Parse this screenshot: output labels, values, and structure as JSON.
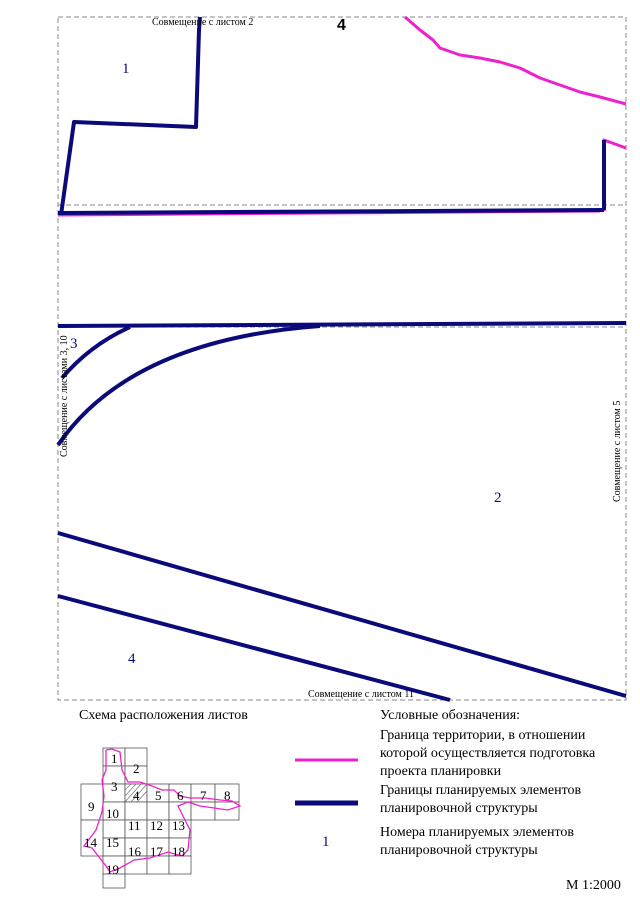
{
  "map": {
    "joins": {
      "top": "Совмещение с листом 2",
      "left": "Совмещение с листами 3, 10",
      "right": "Совмещение с листом 5",
      "bottom": "Совмещение с листом 11"
    },
    "elements": [
      {
        "name": "element-1",
        "number": "1"
      },
      {
        "name": "element-2",
        "number": "2"
      },
      {
        "name": "element-3",
        "number": "3"
      },
      {
        "name": "element-4-top",
        "number": "4"
      },
      {
        "name": "element-4-bottom",
        "number": "4"
      }
    ],
    "colors": {
      "territory_boundary": "#ee22cc",
      "element_boundary": "#0a0a7a",
      "frame": "#888888"
    }
  },
  "sheet_scheme": {
    "title": "Схема расположения листов",
    "sheets": [
      "1",
      "2",
      "3",
      "4",
      "5",
      "6",
      "7",
      "8",
      "9",
      "10",
      "11",
      "12",
      "13",
      "14",
      "15",
      "16",
      "17",
      "18",
      "19"
    ],
    "current_sheet": "4"
  },
  "legend": {
    "title": "Условные обозначения:",
    "items": [
      {
        "symbol": "magenta-line",
        "text": "Граница территории, в отношении которой осуществляется подготовка проекта планировки"
      },
      {
        "symbol": "blue-line",
        "text": "Границы планируемых элементов планировочной структуры"
      },
      {
        "symbol": "number-1",
        "label": "1",
        "text": "Номера планируемых элементов планировочной структуры"
      }
    ]
  },
  "scale": "М 1:2000"
}
